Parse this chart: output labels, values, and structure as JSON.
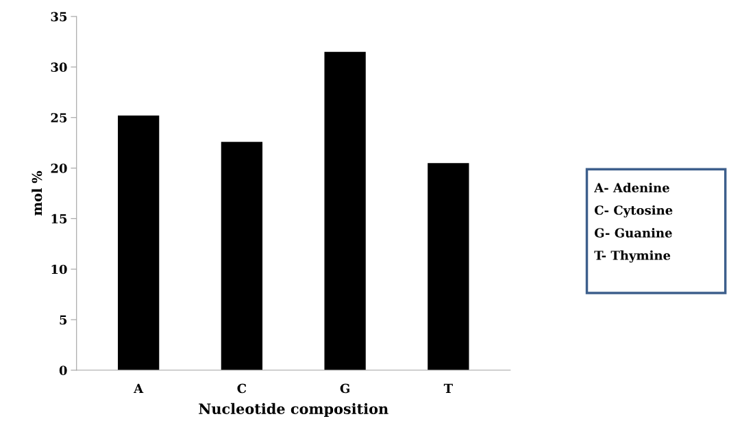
{
  "chart_data": {
    "type": "bar",
    "xlabel": "Nucleotide composition",
    "ylabel": "mol %",
    "categories": [
      "A",
      "C",
      "G",
      "T"
    ],
    "values": [
      25.2,
      22.6,
      31.5,
      20.5
    ],
    "color": "#000000",
    "ylim": [
      0,
      35
    ],
    "yticks": [
      0,
      5,
      10,
      15,
      20,
      25,
      30,
      35
    ],
    "grid": false,
    "annotations": [
      "A- Adenine",
      "C- Cytosine",
      "G- Guanine",
      "T- Thymine"
    ]
  }
}
